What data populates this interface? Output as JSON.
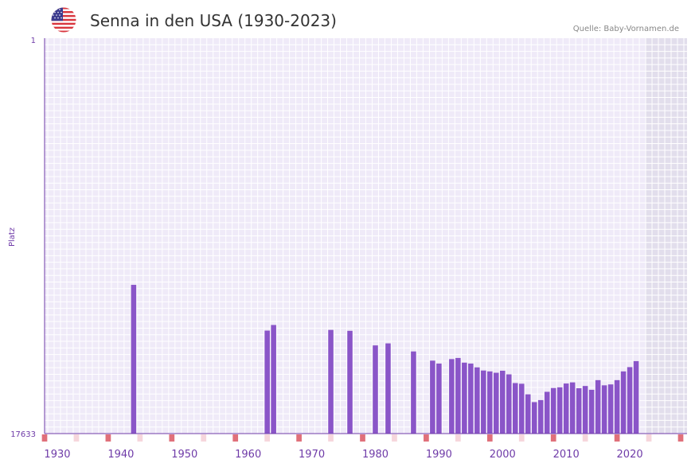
{
  "header": {
    "title": "Senna in den USA (1930-2023)",
    "source": "Quelle: Baby-Vornamen.de",
    "flag_icon": "us-flag-icon"
  },
  "colors": {
    "bar": "#8a55c8",
    "plot_bg": "#efeaf8",
    "grid": "#ffffff",
    "future_bg": "#e2deec",
    "axis": "#6f3ba8",
    "tick_text": "#6f3ba8",
    "decade_marker": "#e0707a",
    "halfdecade_marker": "#f6d6dc"
  },
  "chart_data": {
    "type": "bar",
    "title": "Senna in den USA (1930-2023)",
    "xlabel": "",
    "ylabel": "Platz",
    "y_inverted": true,
    "ylim": [
      1,
      17633
    ],
    "y_ticks": [
      "1",
      "17633"
    ],
    "x_ticks": [
      "1930",
      "1940",
      "1950",
      "1960",
      "1970",
      "1980",
      "1990",
      "2000",
      "2010",
      "2020"
    ],
    "x_range": [
      1928,
      2029
    ],
    "future_shade_start": 2023,
    "years": [
      1942,
      1963,
      1964,
      1973,
      1976,
      1980,
      1982,
      1986,
      1989,
      1990,
      1992,
      1993,
      1994,
      1995,
      1996,
      1997,
      1998,
      1999,
      2000,
      2001,
      2002,
      2003,
      2004,
      2005,
      2006,
      2007,
      2008,
      2009,
      2010,
      2011,
      2012,
      2013,
      2014,
      2015,
      2016,
      2017,
      2018,
      2019,
      2020,
      2021
    ],
    "values": [
      11000,
      13040,
      12790,
      13010,
      13050,
      13700,
      13610,
      13970,
      14380,
      14510,
      14310,
      14260,
      14470,
      14510,
      14680,
      14820,
      14860,
      14920,
      14830,
      14990,
      15380,
      15410,
      15880,
      16230,
      16140,
      15770,
      15600,
      15570,
      15400,
      15350,
      15610,
      15510,
      15680,
      15250,
      15480,
      15440,
      15250,
      14860,
      14670,
      14400
    ]
  }
}
